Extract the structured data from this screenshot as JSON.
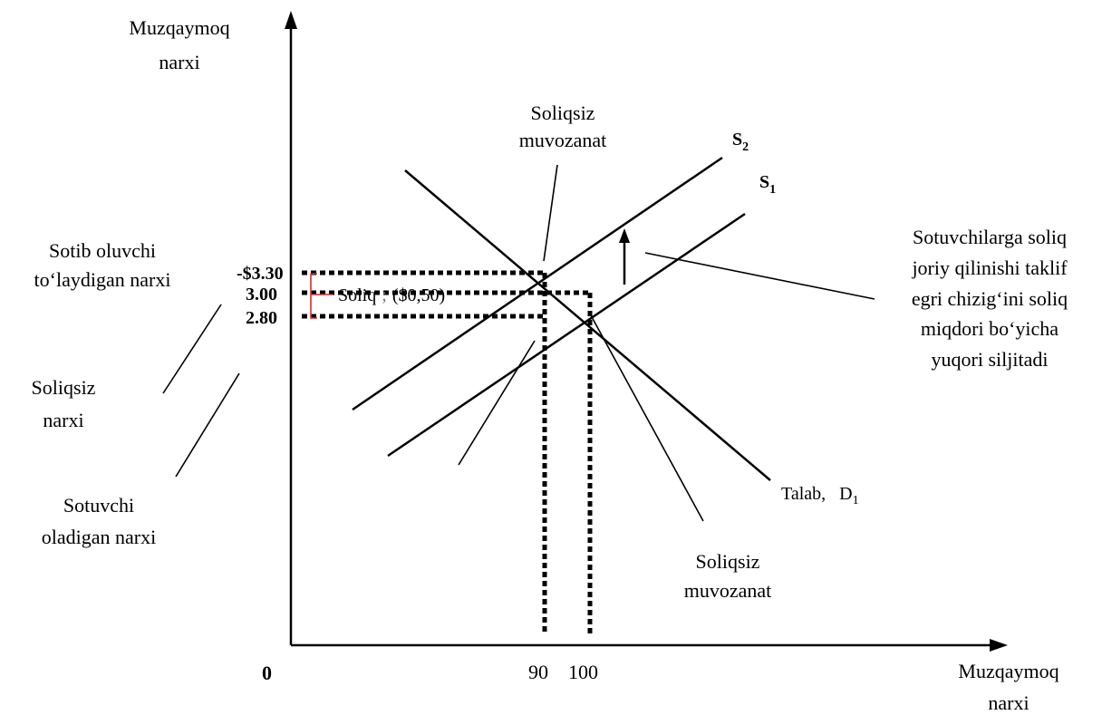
{
  "colors": {
    "line": "#000000",
    "bracket": "#d32f2f",
    "background": "#ffffff"
  },
  "axes": {
    "y_title": [
      "Muzqaymoq",
      "narxi"
    ],
    "x_title": [
      "Muzqaymoq",
      "narxi"
    ],
    "origin": "0"
  },
  "price_ticks": {
    "buyer": "-$3.30",
    "equilibrium": "3.00",
    "seller": "2.80"
  },
  "quantity_ticks": {
    "q_tax": "90",
    "q_free": "100"
  },
  "curves": {
    "s1": "S",
    "s1_sub": "1",
    "s2": "S",
    "s2_sub": "2",
    "demand": "Talab, ",
    "demand_sym": "D",
    "demand_sub": "1"
  },
  "labels": {
    "equilibrium_top": [
      "Soliqsiz",
      "muvozanat"
    ],
    "equilibrium_bottom": [
      "Soliqsiz",
      "muvozanat"
    ],
    "buyer_price": [
      "Sotib oluvchi",
      "to‘laydigan narxi"
    ],
    "free_price": [
      "Soliqsiz",
      "narxi"
    ],
    "seller_price": [
      "Sotuvchi",
      "oladigan narxi"
    ],
    "tax": "Soliq",
    "tax_sep": ";",
    "tax_value": "($0,50)",
    "shift_note": [
      "Sotuvchilarga soliq",
      "joriy qilinishi taklif",
      "egri chizig‘ini soliq",
      "miqdori bo‘yicha",
      "yuqori siljitadi"
    ]
  }
}
